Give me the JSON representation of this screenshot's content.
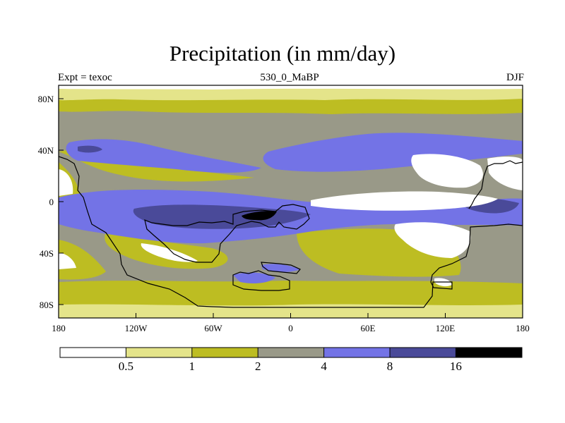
{
  "title": "Precipitation (in mm/day)",
  "subtitle_left": "Expt = texoc",
  "subtitle_center": "530_0_MaBP",
  "subtitle_right": "DJF",
  "colors": {
    "lt0_5": "#ffffff",
    "c0_5_1": "#e4e48a",
    "c1_2": "#bdbd22",
    "c2_4": "#999988",
    "c4_8": "#7373e6",
    "c8_16": "#4a4a99",
    "gt16": "#000000",
    "coast": "#000000"
  },
  "x_ticks": [
    "180",
    "120W",
    "60W",
    "0",
    "60E",
    "120E",
    "180"
  ],
  "y_ticks": [
    "80N",
    "40N",
    "0",
    "40S",
    "80S"
  ],
  "colorbar_labels": [
    "0.5",
    "1",
    "2",
    "4",
    "8",
    "16"
  ]
}
